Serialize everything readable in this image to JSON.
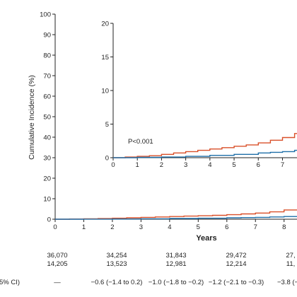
{
  "chart_data": {
    "type": "line",
    "ylabel": "Cumulative Incidence (%)",
    "xlabel": "Years",
    "x_ticks": [
      "0",
      "1",
      "2",
      "3",
      "4",
      "5",
      "6",
      "7",
      "8"
    ],
    "y_ticks": [
      "0",
      "10",
      "20",
      "30",
      "40",
      "50",
      "60",
      "70",
      "80",
      "90",
      "100"
    ],
    "xlim": [
      0,
      8.6
    ],
    "ylim": [
      0,
      100
    ],
    "series": [
      {
        "color": "#d9502a",
        "points": [
          [
            0,
            0
          ],
          [
            0.5,
            0.1
          ],
          [
            1,
            0.2
          ],
          [
            1.5,
            0.3
          ],
          [
            2,
            0.5
          ],
          [
            2.5,
            0.7
          ],
          [
            3,
            0.9
          ],
          [
            3.5,
            1.1
          ],
          [
            4,
            1.3
          ],
          [
            4.5,
            1.5
          ],
          [
            5,
            1.7
          ],
          [
            5.5,
            1.9
          ],
          [
            6,
            2.2
          ],
          [
            6.5,
            2.6
          ],
          [
            7,
            3.0
          ],
          [
            7.5,
            3.6
          ],
          [
            8,
            4.5
          ],
          [
            8.5,
            4.6
          ]
        ]
      },
      {
        "color": "#1f6fa8",
        "points": [
          [
            0,
            0
          ],
          [
            1,
            0.05
          ],
          [
            2,
            0.1
          ],
          [
            3,
            0.2
          ],
          [
            4,
            0.35
          ],
          [
            5,
            0.5
          ],
          [
            6,
            0.7
          ],
          [
            6.5,
            0.8
          ],
          [
            7,
            0.9
          ],
          [
            7.5,
            1.1
          ],
          [
            8,
            1.3
          ],
          [
            8.5,
            1.4
          ]
        ]
      }
    ],
    "inset": {
      "x_ticks": [
        "0",
        "1",
        "2",
        "3",
        "4",
        "5",
        "6",
        "7"
      ],
      "y_ticks": [
        "0",
        "5",
        "10",
        "15",
        "20"
      ],
      "xlim": [
        0,
        7.6
      ],
      "ylim": [
        0,
        20
      ],
      "annotation": "P<0.001"
    }
  },
  "risk_table": {
    "rows": [
      [
        "36,070",
        "34,254",
        "31,843",
        "29,472",
        "27,"
      ],
      [
        "14,205",
        "13,523",
        "12,981",
        "12,214",
        "11,"
      ]
    ],
    "diff_label": "5% CI)",
    "diff_values": [
      "—",
      "−0.6 (−1.4 to 0.2)",
      "−1.0 (−1.8 to −0.2)",
      "−1.2 (−2.1 to −0.3)",
      "−3.8 (−4."
    ]
  }
}
